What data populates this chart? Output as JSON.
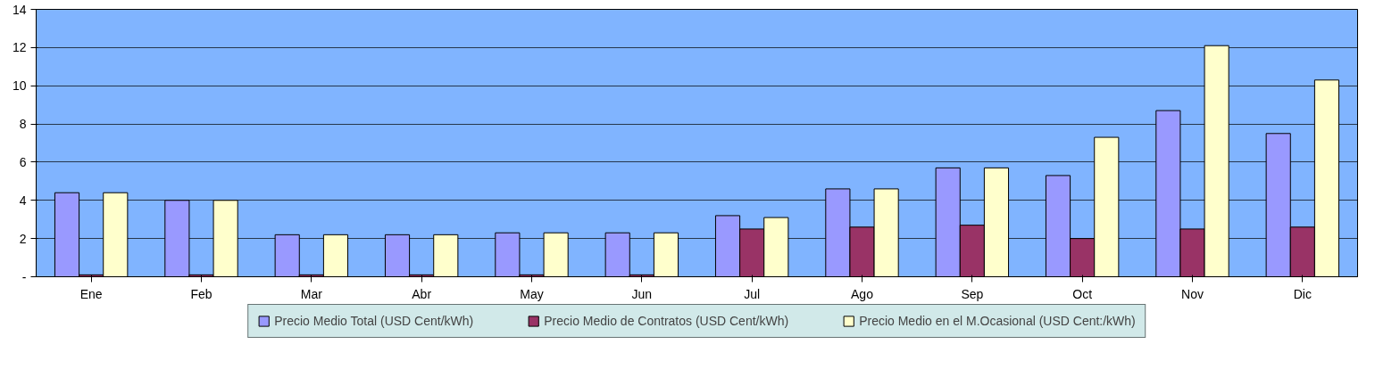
{
  "chart_data": {
    "type": "bar",
    "categories": [
      "Ene",
      "Feb",
      "Mar",
      "Abr",
      "May",
      "Jun",
      "Jul",
      "Ago",
      "Sep",
      "Oct",
      "Nov",
      "Dic"
    ],
    "series": [
      {
        "name": "Precio Medio Total (USD Cent/kWh)",
        "color": "#9999ff",
        "values": [
          4.4,
          4.0,
          2.2,
          2.2,
          2.3,
          2.3,
          3.2,
          4.6,
          5.7,
          5.3,
          8.7,
          7.5
        ]
      },
      {
        "name": "Precio Medio de Contratos (USD Cent/kWh)",
        "color": "#993366",
        "values": [
          0.1,
          0.1,
          0.1,
          0.1,
          0.1,
          0.1,
          2.5,
          2.6,
          2.7,
          2.0,
          2.5,
          2.6
        ]
      },
      {
        "name": "Precio Medio en el M.Ocasional (USD Cent:/kWh)",
        "color": "#ffffcc",
        "values": [
          4.4,
          4.0,
          2.2,
          2.2,
          2.3,
          2.3,
          3.1,
          4.6,
          5.7,
          7.3,
          12.1,
          10.3
        ]
      }
    ],
    "ylim": [
      0,
      14
    ],
    "yticks": [
      {
        "value": 0,
        "label": "-"
      },
      2,
      4,
      6,
      8,
      10,
      12,
      14
    ],
    "grid": "y",
    "legend": "bottom"
  }
}
